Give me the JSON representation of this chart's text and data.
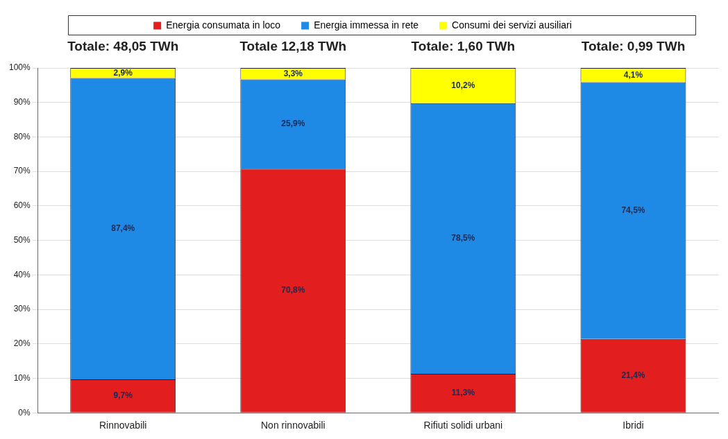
{
  "chart_data": {
    "type": "bar",
    "stacked": true,
    "legend": "top",
    "grid": "y",
    "categories": [
      "Rinnovabili",
      "Non rinnovabili",
      "Rifiuti solidi urbani",
      "Ibridi"
    ],
    "series": [
      {
        "name": "Energia consumata in loco",
        "color": "#e31e1e",
        "values": [
          9.7,
          70.8,
          11.3,
          21.4
        ],
        "value_labels": [
          "9,7%",
          "70,8%",
          "11,3%",
          "21,4%"
        ]
      },
      {
        "name": "Energia immessa in rete",
        "color": "#1f8ae6",
        "values": [
          87.4,
          25.9,
          78.5,
          74.5
        ],
        "value_labels": [
          "87,4%",
          "25,9%",
          "78,5%",
          "74,5%"
        ]
      },
      {
        "name": "Consumi dei servizi ausiliari",
        "color": "#ffff00",
        "values": [
          2.9,
          3.3,
          10.2,
          4.1
        ],
        "value_labels": [
          "2,9%",
          "3,3%",
          "10,2%",
          "4,1%"
        ]
      }
    ],
    "ylim": [
      0,
      100
    ],
    "yticks": [
      {
        "value": 0,
        "label": "0%"
      },
      {
        "value": 10,
        "label": "10%"
      },
      {
        "value": 20,
        "label": "20%"
      },
      {
        "value": 30,
        "label": "30%"
      },
      {
        "value": 40,
        "label": "40%"
      },
      {
        "value": 50,
        "label": "50%"
      },
      {
        "value": 60,
        "label": "60%"
      },
      {
        "value": 70,
        "label": "70%"
      },
      {
        "value": 80,
        "label": "80%"
      },
      {
        "value": 90,
        "label": "90%"
      },
      {
        "value": 100,
        "label": "100%"
      }
    ],
    "annotations": [
      "Totale: 48,05 TWh",
      "Totale 12,18 TWh",
      "Totale: 1,60 TWh",
      "Totale: 0,99 TWh"
    ]
  }
}
